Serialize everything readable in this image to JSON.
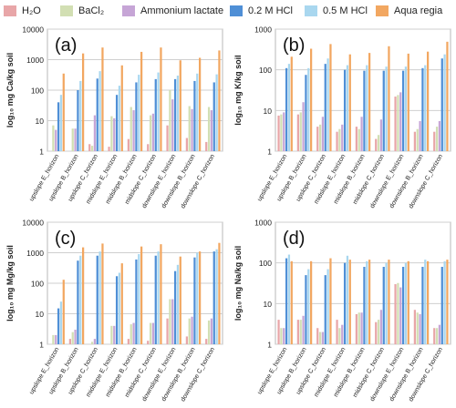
{
  "legend": {
    "items": [
      {
        "label": "H₂O",
        "color": "#e8a6a8"
      },
      {
        "label": "BaCl₂",
        "color": "#d2dfb3"
      },
      {
        "label": "Ammonium lactate",
        "color": "#c6a5d6"
      },
      {
        "label": "0.2 M HCl",
        "color": "#4f8fd6"
      },
      {
        "label": "0.5 M HCl",
        "color": "#a9d7ef"
      },
      {
        "label": "Aqua regia",
        "color": "#f2a761"
      }
    ]
  },
  "chart_data": [
    {
      "type": "bar",
      "panel_label": "(a)",
      "ylabel": "log₁₀ mg Ca/kg soil",
      "yscale": "log",
      "ylim": [
        1,
        10000
      ],
      "yticks": [
        "1",
        "10",
        "100",
        "1000",
        "10000"
      ],
      "categories": [
        "upslope E_horizon",
        "upslope B_horizon",
        "upslope C_horizon",
        "midslope E_horizon",
        "midslope B_horizon",
        "midslope C_horizon",
        "downslope E_horizon",
        "downslope B_horizon",
        "downslope C_horizon"
      ],
      "series": [
        {
          "name": "H₂O",
          "values": [
            1,
            1,
            1.7,
            1.4,
            2.5,
            1.7,
            7,
            2.7,
            2
          ]
        },
        {
          "name": "BaCl₂",
          "values": [
            7,
            5.5,
            1.5,
            14,
            28,
            15,
            100,
            30,
            28
          ]
        },
        {
          "name": "Ammonium lactate",
          "values": [
            5,
            5.5,
            15,
            12,
            22,
            17,
            50,
            24,
            22
          ]
        },
        {
          "name": "0.2 M HCl",
          "values": [
            40,
            100,
            240,
            70,
            180,
            230,
            230,
            200,
            180
          ]
        },
        {
          "name": "0.5 M HCl",
          "values": [
            70,
            200,
            420,
            140,
            320,
            380,
            300,
            350,
            330
          ]
        },
        {
          "name": "Aqua regia",
          "values": [
            350,
            1600,
            2500,
            650,
            1800,
            2500,
            950,
            1150,
            2000
          ]
        }
      ]
    },
    {
      "type": "bar",
      "panel_label": "(b)",
      "ylabel": "log₁₀ mg K/kg soil",
      "yscale": "log",
      "ylim": [
        1,
        1000
      ],
      "yticks": [
        "1",
        "10",
        "100",
        "1000"
      ],
      "categories": [
        "upslope E_horizon",
        "upslope B_horizon",
        "upslope C_horizon",
        "midslope E_horizon",
        "midslope B_horizon",
        "midslope C_horizon",
        "downslope E_horizon",
        "downslope B_horizon",
        "downslope C_horizon"
      ],
      "series": [
        {
          "name": "H₂O",
          "values": [
            7.5,
            8,
            4,
            3,
            4,
            2,
            22,
            3,
            3
          ]
        },
        {
          "name": "BaCl₂",
          "values": [
            8,
            9,
            4.5,
            3.5,
            3.5,
            2.5,
            24,
            3.5,
            4
          ]
        },
        {
          "name": "Ammonium lactate",
          "values": [
            9,
            16,
            7,
            4.5,
            7,
            6,
            28,
            5.5,
            5.5
          ]
        },
        {
          "name": "0.2 M HCl",
          "values": [
            110,
            75,
            140,
            100,
            95,
            95,
            95,
            110,
            190
          ]
        },
        {
          "name": "0.5 M HCl",
          "values": [
            140,
            110,
            190,
            130,
            130,
            120,
            120,
            130,
            240
          ]
        },
        {
          "name": "Aqua regia",
          "values": [
            210,
            330,
            430,
            240,
            260,
            380,
            250,
            280,
            490
          ]
        }
      ]
    },
    {
      "type": "bar",
      "panel_label": "(c)",
      "ylabel": "log₁₀ mg Mg/kg soil",
      "yscale": "log",
      "ylim": [
        1,
        10000
      ],
      "yticks": [
        "1",
        "10",
        "100",
        "1000",
        "10000"
      ],
      "categories": [
        "upslope E_horizon",
        "upslope B_horizon",
        "upslope C_horizon",
        "midslope E_horizon",
        "midslope B_horizon",
        "midslope C_horizon",
        "downslope E_horizon",
        "downslope B_horizon",
        "downslope C_horizon"
      ],
      "series": [
        {
          "name": "H₂O",
          "values": [
            1,
            1.5,
            1,
            1,
            1.5,
            1.3,
            7,
            1.8,
            1.5
          ]
        },
        {
          "name": "BaCl₂",
          "values": [
            2,
            2.5,
            1.2,
            4,
            4.5,
            5,
            30,
            7,
            6
          ]
        },
        {
          "name": "Ammonium lactate",
          "values": [
            2,
            3,
            1.5,
            4,
            5,
            5,
            30,
            8,
            7
          ]
        },
        {
          "name": "0.2 M HCl",
          "values": [
            15,
            550,
            800,
            170,
            600,
            800,
            250,
            700,
            1100
          ]
        },
        {
          "name": "0.5 M HCl",
          "values": [
            25,
            800,
            1100,
            220,
            900,
            1100,
            400,
            1000,
            1300
          ]
        },
        {
          "name": "Aqua regia",
          "values": [
            130,
            1500,
            2000,
            450,
            1600,
            1900,
            750,
            1100,
            2100
          ]
        }
      ]
    },
    {
      "type": "bar",
      "panel_label": "(d)",
      "ylabel": "log₁₀ mg Na/kg soil",
      "yscale": "log",
      "ylim": [
        1,
        1000
      ],
      "yticks": [
        "1",
        "10",
        "100",
        "1000"
      ],
      "categories": [
        "upslope E_horizon",
        "upslope B_horizon",
        "upslope C_horizon",
        "midslope E_horizon",
        "midslope B_horizon",
        "midslope C_horizon",
        "downslope E_horizon",
        "downslope B_horizon",
        "downslope C_horizon"
      ],
      "series": [
        {
          "name": "H₂O",
          "values": [
            4,
            4,
            2.5,
            4,
            5.5,
            3.5,
            30,
            7,
            2.5
          ]
        },
        {
          "name": "BaCl₂",
          "values": [
            2.5,
            4,
            2,
            2.5,
            6,
            4,
            32,
            6,
            2.5
          ]
        },
        {
          "name": "Ammonium lactate",
          "values": [
            2.5,
            5,
            2,
            3,
            6,
            7,
            25,
            5.5,
            3
          ]
        },
        {
          "name": "0.2 M HCl",
          "values": [
            130,
            50,
            50,
            100,
            80,
            80,
            80,
            80,
            80
          ]
        },
        {
          "name": "0.5 M HCl",
          "values": [
            160,
            70,
            70,
            150,
            110,
            100,
            100,
            120,
            110
          ]
        },
        {
          "name": "Aqua regia",
          "values": [
            110,
            110,
            130,
            120,
            120,
            120,
            110,
            110,
            120
          ]
        }
      ]
    }
  ]
}
